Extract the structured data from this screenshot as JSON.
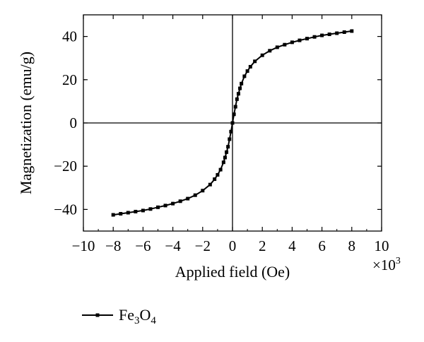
{
  "chart_data": {
    "type": "line",
    "xlabel": "Applied field (Oe)",
    "ylabel": "Magnetization (emu/g)",
    "x_multiplier_base": "×10",
    "x_multiplier_exp": "3",
    "xlim": [
      -10,
      10
    ],
    "ylim": [
      -50,
      50
    ],
    "xticks": [
      -10,
      -8,
      -6,
      -4,
      -2,
      0,
      2,
      4,
      6,
      8,
      10
    ],
    "xtick_labels": [
      "−10",
      "−8",
      "−6",
      "−4",
      "−2",
      "0",
      "2",
      "4",
      "6",
      "8",
      "10"
    ],
    "yticks": [
      -40,
      -20,
      0,
      20,
      40
    ],
    "ytick_labels": [
      "−40",
      "−20",
      "0",
      "20",
      "40"
    ],
    "zero_lines": true,
    "grid": false,
    "legend_position": "bottom-left",
    "series": [
      {
        "name_base": "Fe",
        "name_sub1": "3",
        "name_mid": "O",
        "name_sub2": "4",
        "color": "#000000",
        "marker": "square",
        "x": [
          -8,
          -7.5,
          -7,
          -6.5,
          -6,
          -5.5,
          -5,
          -4.5,
          -4,
          -3.5,
          -3,
          -2.5,
          -2,
          -1.5,
          -1.2,
          -1,
          -0.8,
          -0.6,
          -0.5,
          -0.4,
          -0.3,
          -0.2,
          -0.1,
          0,
          0.1,
          0.2,
          0.3,
          0.4,
          0.5,
          0.6,
          0.8,
          1,
          1.2,
          1.5,
          2,
          2.5,
          3,
          3.5,
          4,
          4.5,
          5,
          5.5,
          6,
          6.5,
          7,
          7.5,
          8
        ],
        "y": [
          -42.5,
          -42,
          -41.5,
          -41,
          -40.5,
          -39.8,
          -39,
          -38.2,
          -37.3,
          -36.2,
          -35,
          -33.4,
          -31.3,
          -28.5,
          -26,
          -24,
          -21.6,
          -18.2,
          -16,
          -13.5,
          -11,
          -7.5,
          -4,
          0,
          4,
          7.5,
          11,
          13.5,
          16,
          18.2,
          21.6,
          24,
          26,
          28.5,
          31.3,
          33.4,
          35,
          36.2,
          37.3,
          38.2,
          39,
          39.8,
          40.5,
          41,
          41.5,
          42,
          42.5
        ]
      }
    ]
  }
}
